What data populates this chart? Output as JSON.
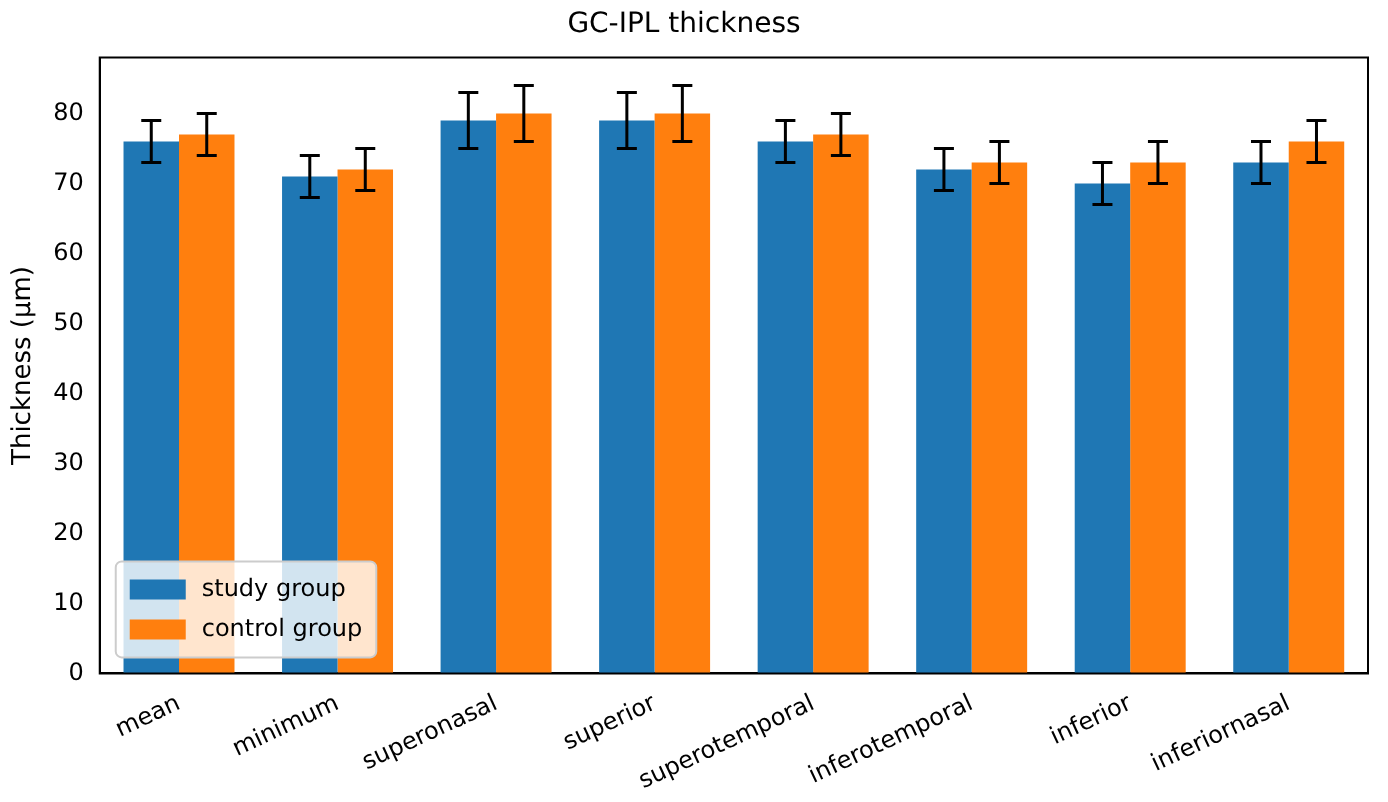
{
  "chart_data": {
    "type": "bar",
    "title": "GC-IPL thickness",
    "ylabel": "Thickness (µm)",
    "categories": [
      "mean",
      "minimum",
      "superonasal",
      "superior",
      "superotemporal",
      "inferotemporal",
      "inferior",
      "inferiornasal"
    ],
    "series": [
      {
        "name": "study group",
        "color": "#1f77b4",
        "values": [
          76,
          71,
          79,
          79,
          76,
          72,
          70,
          73
        ],
        "errors": [
          3,
          3,
          4,
          4,
          3,
          3,
          3,
          3
        ]
      },
      {
        "name": "control group",
        "color": "#ff7f0e",
        "values": [
          77,
          72,
          80,
          80,
          77,
          73,
          73,
          76
        ],
        "errors": [
          3,
          3,
          4,
          4,
          3,
          3,
          3,
          3
        ]
      }
    ],
    "ylim": [
      0,
      88
    ],
    "yticks": [
      0,
      10,
      20,
      30,
      40,
      50,
      60,
      70,
      80
    ],
    "grid": false,
    "legend": "bottom left"
  }
}
